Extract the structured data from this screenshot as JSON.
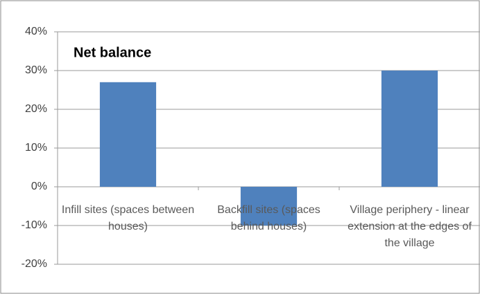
{
  "chart_data": {
    "type": "bar",
    "title": "Net balance",
    "categories": [
      "Infill sites (spaces between houses)",
      "Backfill sites (spaces behind houses)",
      "Village periphery - linear extension at the edges of the village"
    ],
    "values": [
      27,
      -10,
      30
    ],
    "color": "#4f81bd",
    "ylim": [
      -20,
      40
    ],
    "yticks": [
      {
        "value": -20,
        "label": "-20%"
      },
      {
        "value": -10,
        "label": "-10%"
      },
      {
        "value": 0,
        "label": "0%"
      },
      {
        "value": 10,
        "label": "10%"
      },
      {
        "value": 20,
        "label": "20%"
      },
      {
        "value": 30,
        "label": "30%"
      },
      {
        "value": 40,
        "label": "40%"
      }
    ],
    "grid": true
  }
}
